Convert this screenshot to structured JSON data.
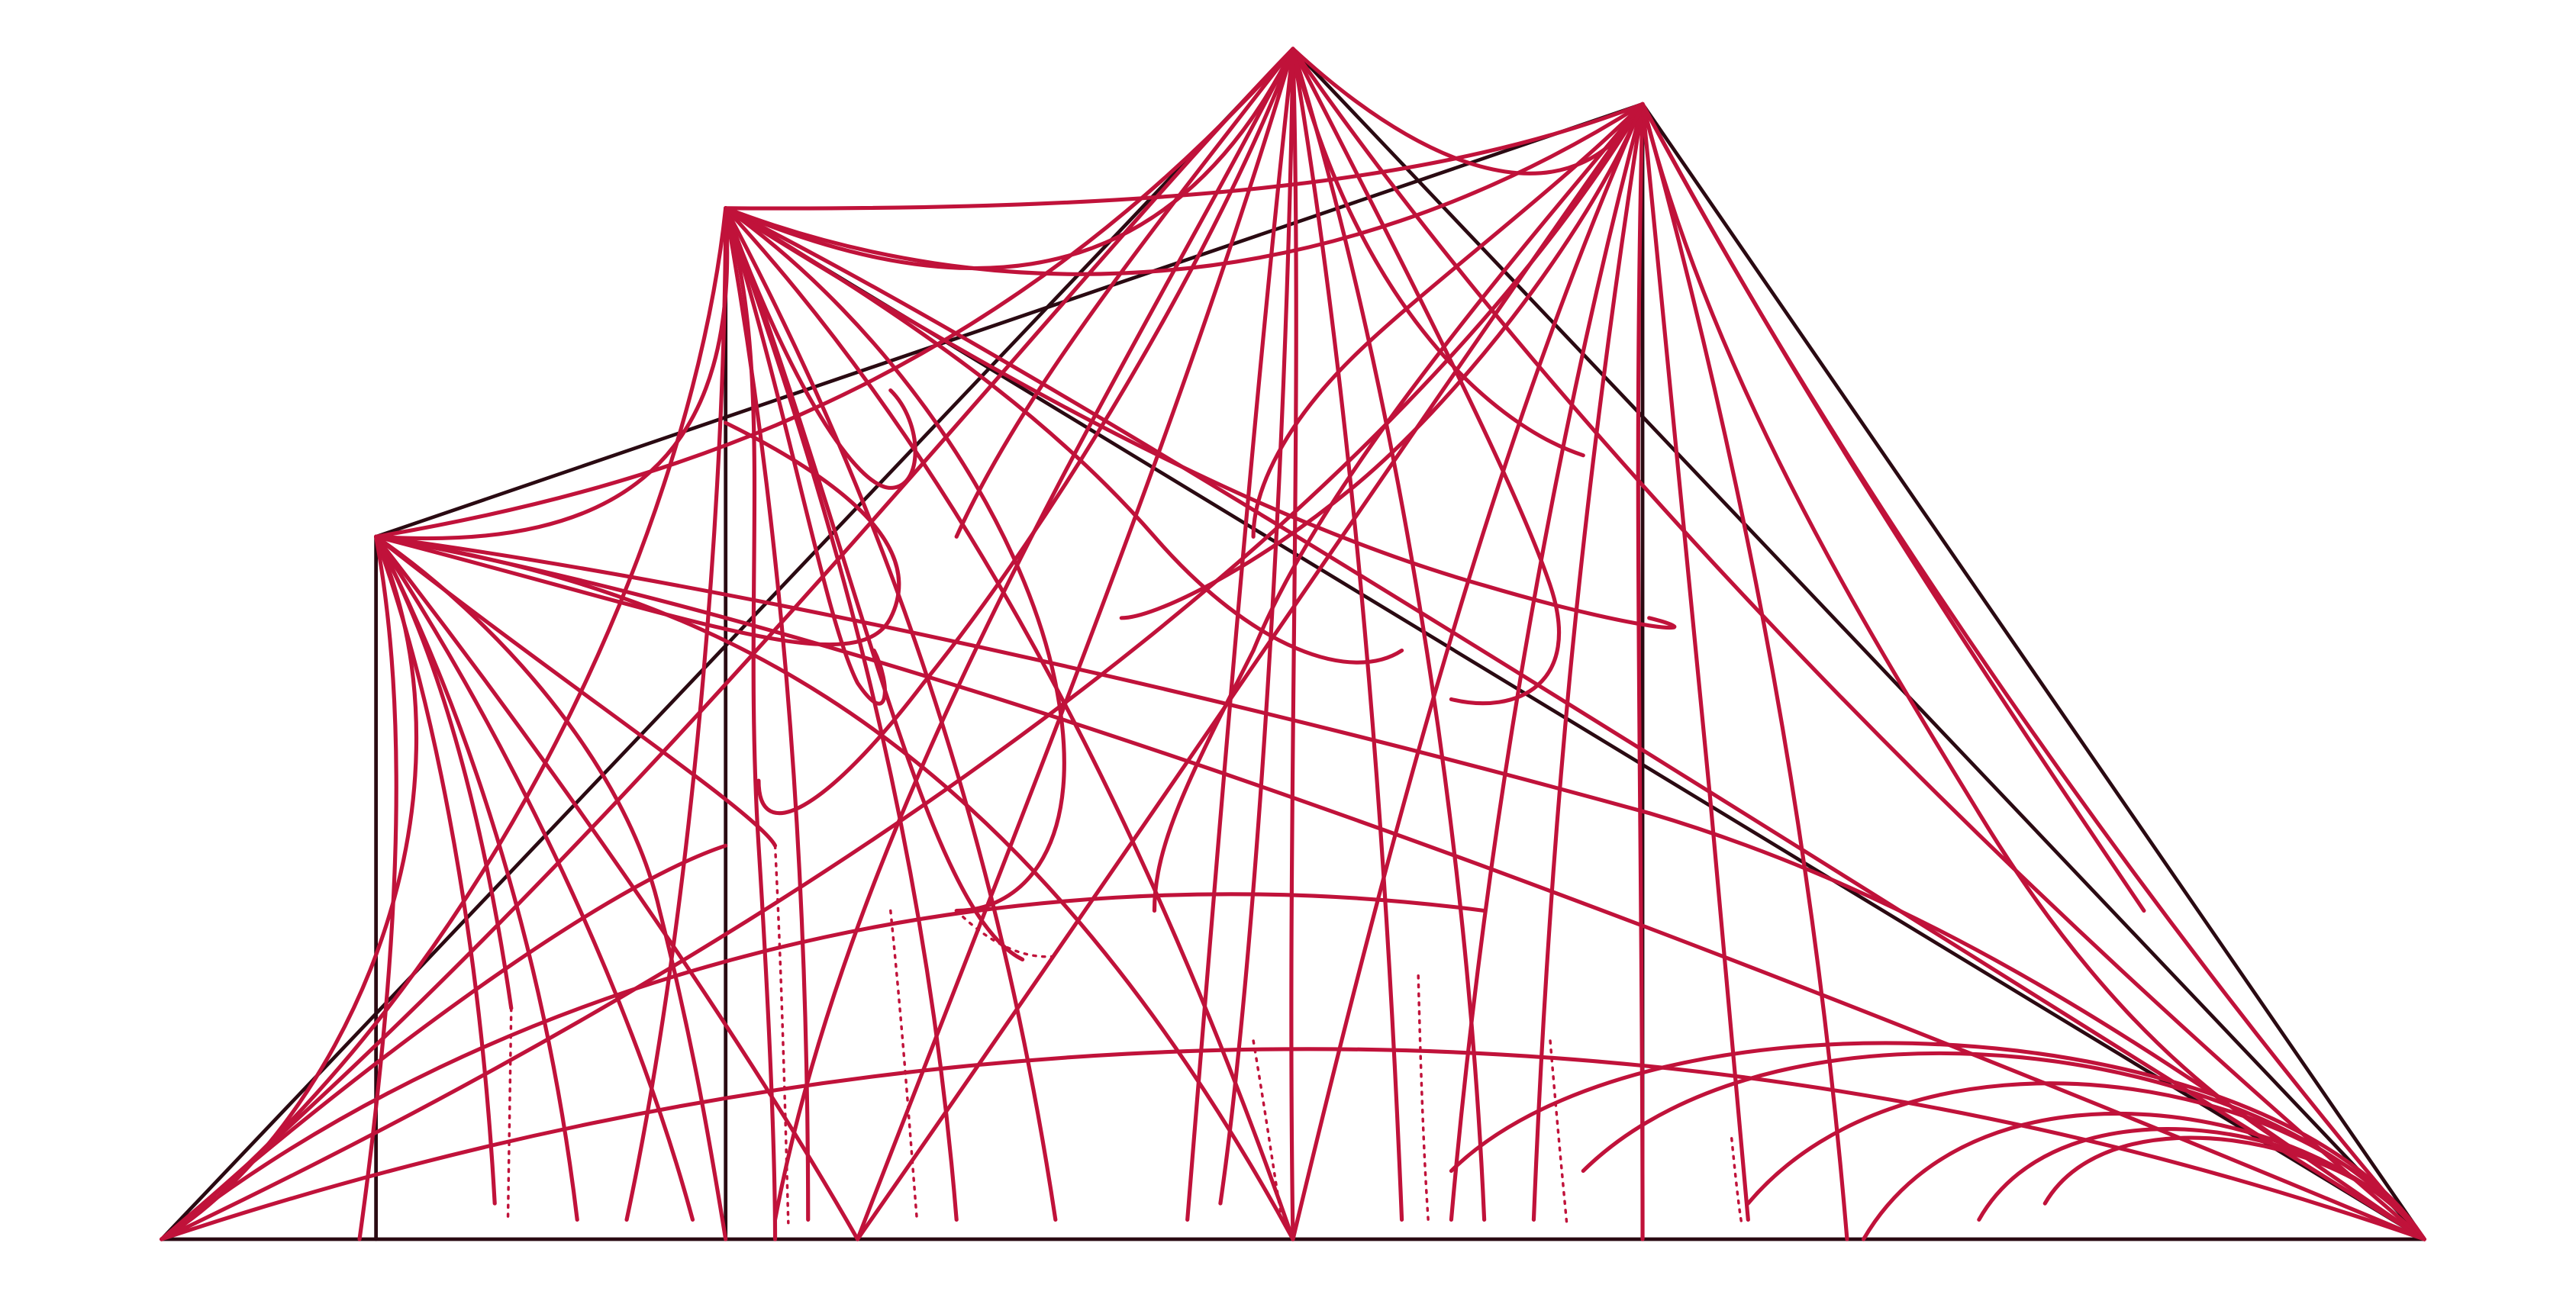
{
  "figure": {
    "background_color": "#ffffff",
    "frame_color": "#2a0a12",
    "curve_color": "#c0123a",
    "description_note": ""
  }
}
